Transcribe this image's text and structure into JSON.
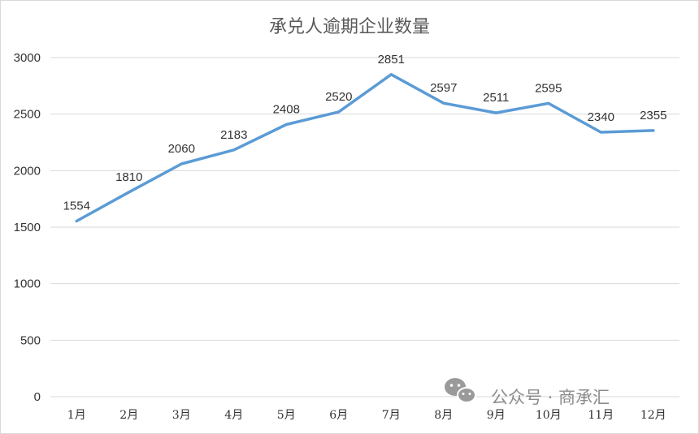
{
  "chart_data": {
    "type": "line",
    "title": "承兑人逾期企业数量",
    "categories": [
      "1月",
      "2月",
      "3月",
      "4月",
      "5月",
      "6月",
      "7月",
      "8月",
      "9月",
      "10月",
      "11月",
      "12月"
    ],
    "series": [
      {
        "values": [
          1554,
          1810,
          2060,
          2183,
          2408,
          2520,
          2851,
          2597,
          2511,
          2595,
          2340,
          2355
        ]
      }
    ],
    "ylim": [
      0,
      3000
    ],
    "yticks": [
      0,
      500,
      1000,
      1500,
      2000,
      2500,
      3000
    ],
    "grid": true,
    "legend": "none",
    "data_labels": true
  },
  "colors": {
    "series": "#5b9bd5",
    "grid": "#d9d9d9",
    "text": "#333333"
  },
  "watermark": {
    "icon": "wechat-icon",
    "text": "公众号 · 商承汇"
  }
}
